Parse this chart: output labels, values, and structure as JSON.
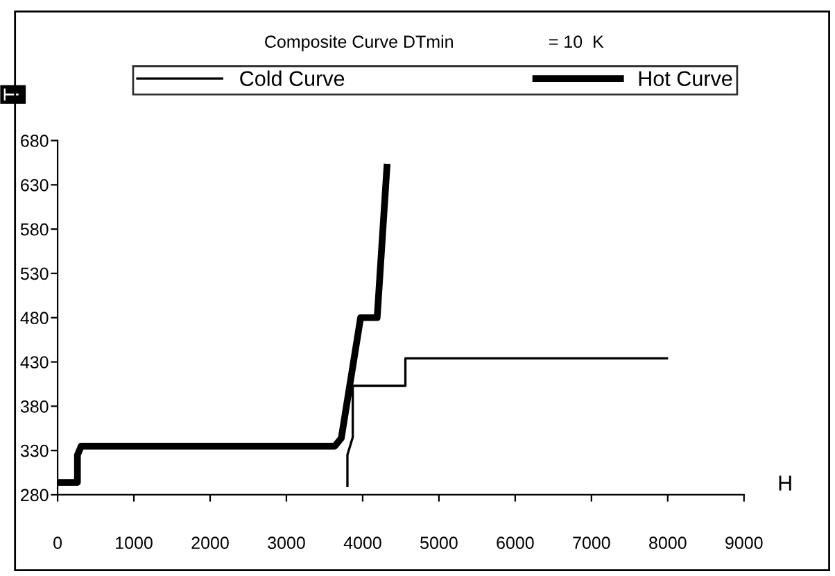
{
  "chart_data": {
    "type": "line",
    "title": "Composite Curve DTmin",
    "subtitle": "= 10  K",
    "xlabel": "H",
    "ylabel": "T",
    "series": [
      {
        "name": "Cold Curve",
        "color": "#000000",
        "x": [
          3800,
          3800,
          3870,
          3870,
          4560,
          4560,
          7990
        ],
        "values": [
          290,
          325,
          345,
          403,
          403,
          434,
          434
        ]
      },
      {
        "name": "Hot Curve",
        "color": "#000000",
        "x": [
          0,
          260,
          260,
          309,
          3636,
          3720,
          3973,
          4190,
          4318
        ],
        "values": [
          294,
          294,
          325,
          335,
          335,
          344,
          480,
          480,
          650
        ]
      }
    ],
    "xlim": [
      0,
      9000
    ],
    "xticks": [
      0,
      1000,
      2000,
      3000,
      4000,
      5000,
      6000,
      7000,
      8000,
      9000
    ],
    "ylim": [
      280,
      680
    ],
    "yticks": [
      280,
      330,
      380,
      430,
      480,
      530,
      580,
      630,
      680
    ],
    "grid": false,
    "legend": "top",
    "marker": "none",
    "line_style": "solid"
  }
}
